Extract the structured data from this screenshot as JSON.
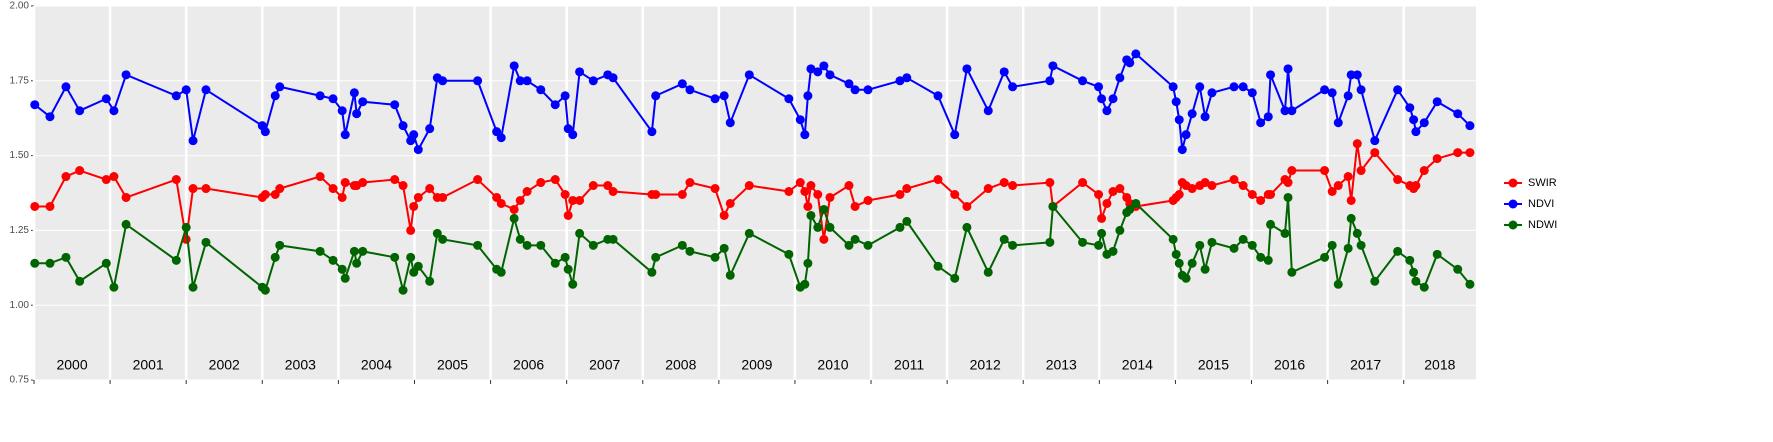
{
  "chart_data": {
    "type": "line",
    "x": [
      2000.01,
      2000.21,
      2000.42,
      2000.6,
      2000.95,
      2001.05,
      2001.21,
      2001.87,
      2002.0,
      2002.09,
      2002.26,
      2003.0,
      2003.04,
      2003.17,
      2003.23,
      2003.76,
      2003.93,
      2004.05,
      2004.09,
      2004.21,
      2004.24,
      2004.32,
      2004.74,
      2004.85,
      2004.95,
      2004.99,
      2005.05,
      2005.2,
      2005.3,
      2005.37,
      2005.83,
      2006.08,
      2006.14,
      2006.31,
      2006.39,
      2006.48,
      2006.66,
      2006.85,
      2006.98,
      2007.02,
      2007.08,
      2007.17,
      2007.35,
      2007.54,
      2007.61,
      2008.12,
      2008.17,
      2008.52,
      2008.62,
      2008.95,
      2009.07,
      2009.15,
      2009.4,
      2009.92,
      2010.07,
      2010.13,
      2010.17,
      2010.21,
      2010.3,
      2010.38,
      2010.46,
      2010.71,
      2010.79,
      2010.96,
      2011.38,
      2011.47,
      2011.88,
      2012.1,
      2012.26,
      2012.54,
      2012.75,
      2012.86,
      2013.35,
      2013.39,
      2013.78,
      2013.99,
      2014.03,
      2014.1,
      2014.18,
      2014.27,
      2014.36,
      2014.4,
      2014.48,
      2014.97,
      2015.01,
      2015.05,
      2015.09,
      2015.14,
      2015.22,
      2015.32,
      2015.39,
      2015.48,
      2015.77,
      2015.89,
      2016.01,
      2016.12,
      2016.22,
      2016.25,
      2016.44,
      2016.48,
      2016.53,
      2016.96,
      2017.06,
      2017.14,
      2017.27,
      2017.31,
      2017.39,
      2017.44,
      2017.62,
      2017.92,
      2018.08,
      2018.13,
      2018.16,
      2018.27,
      2018.44,
      2018.71,
      2018.87
    ],
    "series": [
      {
        "name": "SWIR",
        "color": "#ff0000",
        "values": [
          1.33,
          1.33,
          1.43,
          1.45,
          1.42,
          1.43,
          1.36,
          1.42,
          1.22,
          1.39,
          1.39,
          1.36,
          1.37,
          1.37,
          1.39,
          1.43,
          1.39,
          1.36,
          1.41,
          1.4,
          1.4,
          1.41,
          1.42,
          1.4,
          1.25,
          1.33,
          1.36,
          1.39,
          1.36,
          1.36,
          1.42,
          1.36,
          1.34,
          1.32,
          1.35,
          1.38,
          1.41,
          1.42,
          1.37,
          1.3,
          1.35,
          1.35,
          1.4,
          1.4,
          1.38,
          1.37,
          1.37,
          1.37,
          1.41,
          1.39,
          1.3,
          1.34,
          1.4,
          1.38,
          1.41,
          1.38,
          1.33,
          1.4,
          1.37,
          1.22,
          1.36,
          1.4,
          1.33,
          1.35,
          1.37,
          1.39,
          1.42,
          1.37,
          1.33,
          1.39,
          1.41,
          1.4,
          1.41,
          1.33,
          1.41,
          1.37,
          1.29,
          1.34,
          1.38,
          1.39,
          1.36,
          1.34,
          1.33,
          1.35,
          1.36,
          1.37,
          1.41,
          1.4,
          1.39,
          1.4,
          1.41,
          1.4,
          1.42,
          1.4,
          1.37,
          1.35,
          1.37,
          1.37,
          1.42,
          1.41,
          1.45,
          1.45,
          1.38,
          1.4,
          1.43,
          1.35,
          1.54,
          1.45,
          1.51,
          1.42,
          1.4,
          1.39,
          1.4,
          1.45,
          1.49,
          1.51,
          1.51
        ]
      },
      {
        "name": "NDVI",
        "color": "#0000ff",
        "values": [
          1.67,
          1.63,
          1.73,
          1.65,
          1.69,
          1.65,
          1.77,
          1.7,
          1.72,
          1.55,
          1.72,
          1.6,
          1.58,
          1.7,
          1.73,
          1.7,
          1.69,
          1.65,
          1.57,
          1.71,
          1.64,
          1.68,
          1.67,
          1.6,
          1.55,
          1.57,
          1.52,
          1.59,
          1.76,
          1.75,
          1.75,
          1.58,
          1.56,
          1.8,
          1.75,
          1.75,
          1.72,
          1.67,
          1.7,
          1.59,
          1.57,
          1.78,
          1.75,
          1.77,
          1.76,
          1.58,
          1.7,
          1.74,
          1.72,
          1.69,
          1.7,
          1.61,
          1.77,
          1.69,
          1.62,
          1.57,
          1.7,
          1.79,
          1.78,
          1.8,
          1.77,
          1.74,
          1.72,
          1.72,
          1.75,
          1.76,
          1.7,
          1.57,
          1.79,
          1.65,
          1.78,
          1.73,
          1.75,
          1.8,
          1.75,
          1.73,
          1.69,
          1.65,
          1.69,
          1.76,
          1.82,
          1.81,
          1.84,
          1.73,
          1.68,
          1.62,
          1.52,
          1.57,
          1.64,
          1.73,
          1.63,
          1.71,
          1.73,
          1.73,
          1.71,
          1.61,
          1.63,
          1.77,
          1.65,
          1.79,
          1.65,
          1.72,
          1.71,
          1.61,
          1.7,
          1.77,
          1.77,
          1.72,
          1.55,
          1.72,
          1.66,
          1.62,
          1.58,
          1.61,
          1.68,
          1.64,
          1.6
        ]
      },
      {
        "name": "NDWI",
        "color": "#006400",
        "values": [
          1.14,
          1.14,
          1.16,
          1.08,
          1.14,
          1.06,
          1.27,
          1.15,
          1.26,
          1.06,
          1.21,
          1.06,
          1.05,
          1.16,
          1.2,
          1.18,
          1.15,
          1.12,
          1.09,
          1.18,
          1.14,
          1.18,
          1.16,
          1.05,
          1.16,
          1.11,
          1.13,
          1.08,
          1.24,
          1.22,
          1.2,
          1.12,
          1.11,
          1.29,
          1.22,
          1.2,
          1.2,
          1.14,
          1.16,
          1.12,
          1.07,
          1.24,
          1.2,
          1.22,
          1.22,
          1.11,
          1.16,
          1.2,
          1.18,
          1.16,
          1.19,
          1.1,
          1.24,
          1.17,
          1.06,
          1.07,
          1.14,
          1.3,
          1.26,
          1.32,
          1.26,
          1.2,
          1.22,
          1.2,
          1.26,
          1.28,
          1.13,
          1.09,
          1.26,
          1.11,
          1.22,
          1.2,
          1.21,
          1.33,
          1.21,
          1.2,
          1.24,
          1.17,
          1.18,
          1.25,
          1.31,
          1.32,
          1.34,
          1.22,
          1.17,
          1.14,
          1.1,
          1.09,
          1.14,
          1.2,
          1.12,
          1.21,
          1.19,
          1.22,
          1.2,
          1.16,
          1.15,
          1.27,
          1.24,
          1.36,
          1.11,
          1.16,
          1.2,
          1.07,
          1.19,
          1.29,
          1.24,
          1.2,
          1.08,
          1.18,
          1.15,
          1.11,
          1.08,
          1.06,
          1.17,
          1.12,
          1.07
        ]
      }
    ],
    "xlim": [
      2000,
      2018.95
    ],
    "xticks": [
      2000,
      2001,
      2002,
      2003,
      2004,
      2005,
      2006,
      2007,
      2008,
      2009,
      2010,
      2011,
      2012,
      2013,
      2014,
      2015,
      2016,
      2017,
      2018
    ],
    "year_labels": [
      "2000",
      "2001",
      "2002",
      "2003",
      "2004",
      "2005",
      "2006",
      "2007",
      "2008",
      "2009",
      "2010",
      "2011",
      "2012",
      "2013",
      "2014",
      "2015",
      "2016",
      "2017",
      "2018"
    ],
    "ylim": [
      0.75,
      2.0
    ],
    "yticks": [
      0.75,
      {
        "value": 1,
        "label": "1.00"
      },
      {
        "value": 1.25,
        "label": "1.25"
      },
      {
        "value": 1.5,
        "label": "1.50"
      },
      {
        "value": 1.75,
        "label": "1.75"
      },
      {
        "value": 2,
        "label": "2.00"
      }
    ],
    "grid": true,
    "legend": "right"
  }
}
